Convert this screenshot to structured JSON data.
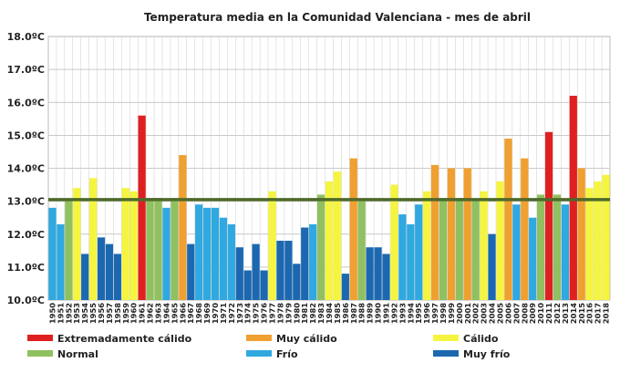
{
  "chart_data": {
    "type": "bar",
    "title": "Temperatura media en la Comunidad Valenciana - mes de abril",
    "y_tick_labels": [
      "10.0ºC",
      "11.0ºC",
      "12.0ºC",
      "13.0ºC",
      "14.0ºC",
      "15.0ºC",
      "16.0ºC",
      "17.0ºC",
      "18.0ºC"
    ],
    "ylim": [
      10,
      18
    ],
    "grid": true,
    "normal_line": 13.05,
    "colors": {
      "Extremadamente cálido": "#e02020",
      "Muy cálido": "#f0a030",
      "Cálido": "#f5f540",
      "Normal": "#90c060",
      "Frío": "#30a8e0",
      "Muy frío": "#1c68b0",
      "normal_line": "#4e6a2a"
    },
    "legend": [
      {
        "label": "Extremadamente cálido",
        "category": "Extremadamente cálido"
      },
      {
        "label": "Muy cálido",
        "category": "Muy cálido"
      },
      {
        "label": "Cálido",
        "category": "Cálido"
      },
      {
        "label": "Normal",
        "category": "Normal"
      },
      {
        "label": "Frío",
        "category": "Frío"
      },
      {
        "label": "Muy frío",
        "category": "Muy frío"
      }
    ],
    "categories": [
      "1950",
      "1951",
      "1952",
      "1953",
      "1954",
      "1955",
      "1956",
      "1957",
      "1958",
      "1959",
      "1960",
      "1961",
      "1962",
      "1963",
      "1964",
      "1965",
      "1966",
      "1967",
      "1968",
      "1969",
      "1970",
      "1971",
      "1972",
      "1973",
      "1974",
      "1975",
      "1976",
      "1977",
      "1978",
      "1979",
      "1980",
      "1981",
      "1982",
      "1983",
      "1984",
      "1985",
      "1986",
      "1987",
      "1988",
      "1989",
      "1990",
      "1991",
      "1992",
      "1993",
      "1994",
      "1995",
      "1996",
      "1997",
      "1998",
      "1999",
      "2000",
      "2001",
      "2002",
      "2003",
      "2004",
      "2005",
      "2006",
      "2007",
      "2008",
      "2009",
      "2010",
      "2011",
      "2012",
      "2013",
      "2014",
      "2015",
      "2016",
      "2017",
      "2018"
    ],
    "values": [
      12.8,
      12.3,
      13.0,
      13.4,
      11.4,
      13.7,
      11.9,
      11.7,
      11.4,
      13.4,
      13.3,
      15.6,
      13.1,
      13.1,
      12.8,
      13.1,
      14.4,
      11.7,
      12.9,
      12.8,
      12.8,
      12.5,
      12.3,
      11.6,
      10.9,
      11.7,
      10.9,
      13.3,
      11.8,
      11.8,
      11.1,
      12.2,
      12.3,
      13.2,
      13.6,
      13.9,
      10.8,
      14.3,
      13.0,
      11.6,
      11.6,
      11.4,
      13.5,
      12.6,
      12.3,
      12.9,
      13.3,
      14.1,
      13.1,
      14.0,
      13.1,
      14.0,
      13.0,
      13.3,
      12.0,
      13.6,
      14.9,
      12.9,
      14.3,
      12.5,
      13.2,
      15.1,
      13.2,
      12.9,
      16.2,
      14.0,
      13.4,
      13.6,
      13.8
    ],
    "classes": [
      "Frío",
      "Frío",
      "Normal",
      "Cálido",
      "Muy frío",
      "Cálido",
      "Muy frío",
      "Muy frío",
      "Muy frío",
      "Cálido",
      "Cálido",
      "Extremadamente cálido",
      "Normal",
      "Normal",
      "Frío",
      "Normal",
      "Muy cálido",
      "Muy frío",
      "Frío",
      "Frío",
      "Frío",
      "Frío",
      "Frío",
      "Muy frío",
      "Muy frío",
      "Muy frío",
      "Muy frío",
      "Cálido",
      "Muy frío",
      "Muy frío",
      "Muy frío",
      "Muy frío",
      "Frío",
      "Normal",
      "Cálido",
      "Cálido",
      "Muy frío",
      "Muy cálido",
      "Normal",
      "Muy frío",
      "Muy frío",
      "Muy frío",
      "Cálido",
      "Frío",
      "Frío",
      "Frío",
      "Cálido",
      "Muy cálido",
      "Normal",
      "Muy cálido",
      "Normal",
      "Muy cálido",
      "Normal",
      "Cálido",
      "Muy frío",
      "Cálido",
      "Muy cálido",
      "Frío",
      "Muy cálido",
      "Frío",
      "Normal",
      "Extremadamente cálido",
      "Normal",
      "Frío",
      "Extremadamente cálido",
      "Muy cálido",
      "Cálido",
      "Cálido",
      "Cálido"
    ]
  }
}
